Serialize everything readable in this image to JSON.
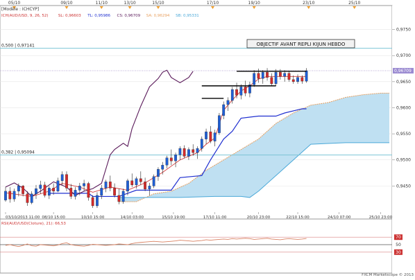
{
  "chart_data": [
    {
      "type": "candlestick",
      "model_label": "[Modèle : ICHCYP]",
      "legend": [
        {
          "text": "ICH(AUD/USD, 9, 26, 52)",
          "color": "#cc3333"
        },
        {
          "text": "SL: 0,96603",
          "color": "#cc3333"
        },
        {
          "text": "TL: 0,95986",
          "color": "#1f2fd0"
        },
        {
          "text": "CS: 0,96709",
          "color": "#5a1a5a"
        },
        {
          "text": "SA: 0,96294",
          "color": "#e8a060"
        },
        {
          "text": "SB: 0,95331",
          "color": "#4aa8d8"
        }
      ],
      "annotation": "OBJECTIF AVANT REPLI KIJUN HEBDO",
      "top_dates": [
        {
          "label": "05/10",
          "x": 2
        },
        {
          "label": "09/10",
          "x": 14
        },
        {
          "label": "11/10",
          "x": 22
        },
        {
          "label": "13/10",
          "x": 28.5
        },
        {
          "label": "15/10",
          "x": 35
        },
        {
          "label": "17/10",
          "x": 47.5
        },
        {
          "label": "19/10",
          "x": 57
        },
        {
          "label": "23/10",
          "x": 69.5
        },
        {
          "label": "25/10",
          "x": 80
        }
      ],
      "bottom_dates": [
        {
          "label": "03/10/2013 11:00",
          "x": 0
        },
        {
          "label": "08/10 15:00",
          "x": 11
        },
        {
          "label": "10/10 15:00",
          "x": 20
        },
        {
          "label": "14/10 03:00",
          "x": 29
        },
        {
          "label": "15/10 19:00",
          "x": 38.5
        },
        {
          "label": "17/10 11:00",
          "x": 48
        },
        {
          "label": "20/10 23:00",
          "x": 58
        },
        {
          "label": "22/10 15:00",
          "x": 67
        },
        {
          "label": "24/10 07:00",
          "x": 76.5
        },
        {
          "label": "25/10 23:00",
          "x": 86
        }
      ],
      "y_ticks": [
        "0,9750",
        "0,9700",
        "0,9650",
        "0,9600",
        "0,9550",
        "0,9500",
        "0,9450"
      ],
      "ylim": [
        0.94,
        0.978
      ],
      "xlim": [
        0,
        88
      ],
      "last_price_label": "0,96709",
      "fib_levels": [
        {
          "label": "0,500 | 0,97141",
          "value": 0.97141
        },
        {
          "label": "0,382 | 0,95094",
          "value": 0.95094
        }
      ],
      "candles": [
        [
          0.9423,
          0.9448,
          0.942,
          0.944
        ],
        [
          0.944,
          0.9448,
          0.9418,
          0.9425
        ],
        [
          0.9425,
          0.9445,
          0.942,
          0.944
        ],
        [
          0.944,
          0.9455,
          0.943,
          0.945
        ],
        [
          0.945,
          0.9452,
          0.943,
          0.9435
        ],
        [
          0.9435,
          0.944,
          0.9412,
          0.9418
        ],
        [
          0.9418,
          0.944,
          0.9415,
          0.9435
        ],
        [
          0.9435,
          0.9452,
          0.9425,
          0.9445
        ],
        [
          0.9445,
          0.946,
          0.9435,
          0.9452
        ],
        [
          0.9452,
          0.9458,
          0.9428,
          0.9432
        ],
        [
          0.9432,
          0.945,
          0.9425,
          0.9446
        ],
        [
          0.9446,
          0.9455,
          0.9433,
          0.944
        ],
        [
          0.944,
          0.9466,
          0.9438,
          0.946
        ],
        [
          0.946,
          0.9478,
          0.9452,
          0.9472
        ],
        [
          0.9472,
          0.9478,
          0.944,
          0.9446
        ],
        [
          0.9446,
          0.9454,
          0.9425,
          0.943
        ],
        [
          0.943,
          0.9448,
          0.9424,
          0.9442
        ],
        [
          0.9442,
          0.9456,
          0.9432,
          0.945
        ],
        [
          0.945,
          0.9462,
          0.944,
          0.9455
        ],
        [
          0.9455,
          0.9458,
          0.9422,
          0.9428
        ],
        [
          0.9428,
          0.9432,
          0.9408,
          0.9412
        ],
        [
          0.9412,
          0.9438,
          0.9408,
          0.9432
        ],
        [
          0.9432,
          0.9452,
          0.9425,
          0.9446
        ],
        [
          0.9446,
          0.9462,
          0.9438,
          0.9458
        ],
        [
          0.9458,
          0.947,
          0.944,
          0.9446
        ],
        [
          0.9446,
          0.9455,
          0.9428,
          0.9432
        ],
        [
          0.9432,
          0.9445,
          0.9415,
          0.942
        ],
        [
          0.942,
          0.9445,
          0.9416,
          0.944
        ],
        [
          0.944,
          0.9464,
          0.9432,
          0.946
        ],
        [
          0.946,
          0.9474,
          0.9448,
          0.9452
        ],
        [
          0.9452,
          0.9468,
          0.9445,
          0.9464
        ],
        [
          0.9464,
          0.9478,
          0.9452,
          0.9458
        ],
        [
          0.9458,
          0.9466,
          0.944,
          0.9444
        ],
        [
          0.9444,
          0.9456,
          0.9432,
          0.945
        ],
        [
          0.945,
          0.9472,
          0.9446,
          0.9468
        ],
        [
          0.9468,
          0.9486,
          0.946,
          0.9482
        ],
        [
          0.9482,
          0.9496,
          0.9472,
          0.949
        ],
        [
          0.949,
          0.9508,
          0.9484,
          0.9504
        ],
        [
          0.9504,
          0.952,
          0.949,
          0.9498
        ],
        [
          0.9498,
          0.9514,
          0.9486,
          0.951
        ],
        [
          0.951,
          0.9526,
          0.95,
          0.9522
        ],
        [
          0.9522,
          0.9528,
          0.9503,
          0.9507
        ],
        [
          0.9507,
          0.9524,
          0.95,
          0.952
        ],
        [
          0.952,
          0.953,
          0.9508,
          0.9514
        ],
        [
          0.9514,
          0.9526,
          0.9502,
          0.9522
        ],
        [
          0.9522,
          0.9545,
          0.9516,
          0.954
        ],
        [
          0.954,
          0.956,
          0.953,
          0.9554
        ],
        [
          0.9554,
          0.9565,
          0.9532,
          0.9536
        ],
        [
          0.9536,
          0.9558,
          0.9526,
          0.9552
        ],
        [
          0.9552,
          0.959,
          0.9548,
          0.9585
        ],
        [
          0.9585,
          0.9612,
          0.9578,
          0.9606
        ],
        [
          0.9606,
          0.962,
          0.9594,
          0.9614
        ],
        [
          0.9614,
          0.964,
          0.9608,
          0.9635
        ],
        [
          0.9635,
          0.9648,
          0.9618,
          0.9624
        ],
        [
          0.9624,
          0.9645,
          0.9616,
          0.964
        ],
        [
          0.964,
          0.9652,
          0.9622,
          0.9628
        ],
        [
          0.9628,
          0.965,
          0.962,
          0.9644
        ],
        [
          0.9644,
          0.9672,
          0.964,
          0.9666
        ],
        [
          0.9666,
          0.9675,
          0.9648,
          0.9656
        ],
        [
          0.9656,
          0.9672,
          0.9646,
          0.9668
        ],
        [
          0.9668,
          0.9676,
          0.9652,
          0.9658
        ],
        [
          0.9658,
          0.9666,
          0.9642,
          0.9646
        ],
        [
          0.9646,
          0.9674,
          0.9642,
          0.9668
        ],
        [
          0.9668,
          0.9674,
          0.9654,
          0.966
        ],
        [
          0.966,
          0.9672,
          0.965,
          0.9666
        ],
        [
          0.9666,
          0.967,
          0.965,
          0.9654
        ],
        [
          0.9654,
          0.9662,
          0.9646,
          0.965
        ],
        [
          0.965,
          0.9664,
          0.9646,
          0.9658
        ],
        [
          0.9658,
          0.9662,
          0.9646,
          0.9651
        ],
        [
          0.9651,
          0.9676,
          0.9648,
          0.9671
        ]
      ],
      "tenkan": [
        [
          0,
          0.9437
        ],
        [
          6,
          0.943
        ],
        [
          10,
          0.944
        ],
        [
          13,
          0.9455
        ],
        [
          17,
          0.9448
        ],
        [
          20,
          0.9438
        ],
        [
          24,
          0.9448
        ],
        [
          28,
          0.9442
        ],
        [
          32,
          0.9456
        ],
        [
          36,
          0.9476
        ],
        [
          40,
          0.95
        ],
        [
          44,
          0.9514
        ],
        [
          46,
          0.953
        ],
        [
          48,
          0.9542
        ],
        [
          50,
          0.9595
        ],
        [
          52,
          0.9615
        ],
        [
          54,
          0.9632
        ],
        [
          56,
          0.9642
        ],
        [
          58,
          0.9655
        ],
        [
          60,
          0.966
        ],
        [
          62,
          0.966
        ],
        [
          64,
          0.966
        ],
        [
          66,
          0.966
        ],
        [
          68,
          0.966
        ],
        [
          69,
          0.966
        ]
      ],
      "kijun": [
        [
          10,
          0.9436
        ],
        [
          15,
          0.9436
        ],
        [
          19,
          0.9436
        ],
        [
          20,
          0.943
        ],
        [
          26,
          0.943
        ],
        [
          30,
          0.9442
        ],
        [
          38,
          0.9442
        ],
        [
          40,
          0.9466
        ],
        [
          45,
          0.947
        ],
        [
          47,
          0.95
        ],
        [
          50,
          0.954
        ],
        [
          52,
          0.9555
        ],
        [
          54,
          0.958
        ],
        [
          56,
          0.9582
        ],
        [
          58,
          0.9584
        ],
        [
          62,
          0.9584
        ],
        [
          64,
          0.959
        ],
        [
          68,
          0.9598
        ],
        [
          69,
          0.9598
        ]
      ],
      "chikou": [
        [
          0,
          0.9448
        ],
        [
          2,
          0.9456
        ],
        [
          4,
          0.9446
        ],
        [
          6,
          0.943
        ],
        [
          8,
          0.944
        ],
        [
          11,
          0.9458
        ],
        [
          14,
          0.9448
        ],
        [
          16,
          0.9432
        ],
        [
          18,
          0.944
        ],
        [
          20,
          0.9445
        ],
        [
          22,
          0.9455
        ],
        [
          24,
          0.951
        ],
        [
          25,
          0.952
        ],
        [
          27,
          0.9532
        ],
        [
          28,
          0.9526
        ],
        [
          29,
          0.956
        ],
        [
          31,
          0.9603
        ],
        [
          33,
          0.964
        ],
        [
          35,
          0.9656
        ],
        [
          36,
          0.9668
        ],
        [
          37,
          0.9672
        ],
        [
          38,
          0.9658
        ],
        [
          40,
          0.9648
        ],
        [
          42,
          0.9658
        ],
        [
          43,
          0.967
        ]
      ],
      "senkou_a": [
        [
          26,
          0.942
        ],
        [
          30,
          0.942
        ],
        [
          34,
          0.9435
        ],
        [
          38,
          0.944
        ],
        [
          42,
          0.9455
        ],
        [
          46,
          0.948
        ],
        [
          50,
          0.95
        ],
        [
          54,
          0.952
        ],
        [
          58,
          0.954
        ],
        [
          62,
          0.957
        ],
        [
          66,
          0.959
        ],
        [
          70,
          0.9605
        ],
        [
          74,
          0.961
        ],
        [
          78,
          0.962
        ],
        [
          82,
          0.9625
        ],
        [
          86,
          0.9628
        ],
        [
          88,
          0.9628
        ]
      ],
      "senkou_b": [
        [
          26,
          0.9428
        ],
        [
          40,
          0.9428
        ],
        [
          48,
          0.943
        ],
        [
          54,
          0.943
        ],
        [
          56,
          0.9428
        ],
        [
          58,
          0.944
        ],
        [
          62,
          0.947
        ],
        [
          66,
          0.95
        ],
        [
          70,
          0.953
        ],
        [
          78,
          0.9533
        ],
        [
          88,
          0.9533
        ]
      ],
      "setup_lines": [
        {
          "x1": 45,
          "x2": 50,
          "y": 0.9618
        },
        {
          "x1": 45,
          "x2": 62,
          "y": 0.9642
        },
        {
          "x1": 53,
          "x2": 69,
          "y": 0.967
        }
      ]
    },
    {
      "type": "line",
      "title": "RSI(AUD/USD(Cloture), 21): 66,53",
      "ylim": [
        0,
        100
      ],
      "y_ticks": [
        "70",
        "50",
        "30"
      ],
      "values": [
        48,
        50,
        47,
        45,
        48,
        52,
        47,
        46,
        50,
        49,
        48,
        47,
        49,
        53,
        55,
        50,
        48,
        47,
        46,
        48,
        51,
        50,
        49,
        48,
        49,
        50,
        52,
        51,
        50,
        53,
        55,
        56,
        57,
        58,
        59,
        58,
        57,
        58,
        59,
        60,
        62,
        61,
        60,
        59,
        60,
        61,
        63,
        62,
        63,
        64,
        65,
        64,
        66,
        65,
        66,
        67,
        66,
        64,
        65,
        66,
        67,
        65,
        64,
        63,
        65,
        66,
        65,
        64,
        65,
        66.5
      ]
    }
  ],
  "watermark": "FXCM Marketscope © 2013"
}
